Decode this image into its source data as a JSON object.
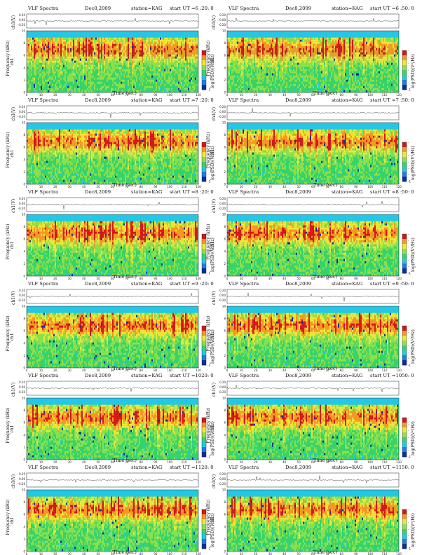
{
  "page": {
    "program_label": "VLF Spectra",
    "date": "Dec8,2009",
    "station": "station=KAG",
    "ut_prefix": "start UT =",
    "ch_axis_label": "ch1(V)",
    "freq_axis_label": "Frequency (kHz)",
    "channel_label": "ch1",
    "colorbar_label": "log(PSD)(V²/Hz)",
    "time_axis_label": "Time (sec)"
  },
  "chart_data": [
    {
      "type": "heatmap",
      "start_ut": "6 :20: 0"
    },
    {
      "type": "heatmap",
      "start_ut": "6 :50: 0"
    },
    {
      "type": "heatmap",
      "start_ut": "7 :20: 0"
    },
    {
      "type": "heatmap",
      "start_ut": "7 :50: 0"
    },
    {
      "type": "heatmap",
      "start_ut": "8 :20: 0"
    },
    {
      "type": "heatmap",
      "start_ut": "8 :50: 0"
    },
    {
      "type": "heatmap",
      "start_ut": "9 :20: 0"
    },
    {
      "type": "heatmap",
      "start_ut": "9 :50: 0"
    },
    {
      "type": "heatmap",
      "start_ut": "1020: 0"
    },
    {
      "type": "heatmap",
      "start_ut": "1050: 0"
    },
    {
      "type": "heatmap",
      "start_ut": "1120: 0"
    },
    {
      "type": "heatmap",
      "start_ut": "1150: 0"
    }
  ],
  "axes": {
    "x_ticks": [
      "0",
      "10",
      "20",
      "30",
      "40",
      "50",
      "60",
      "70",
      "80",
      "90",
      "100",
      "110",
      "120"
    ],
    "x_range": [
      0,
      120
    ],
    "y_ticks": [
      "0",
      "2",
      "4",
      "6",
      "8",
      "10"
    ],
    "y_range": [
      0,
      10
    ],
    "ch_ticks": [
      "0.20",
      "0.00",
      "-0.20"
    ],
    "cbar_ticks": [
      "-1",
      "-",
      "-",
      "-",
      "-",
      "-",
      "-"
    ]
  },
  "colors": {
    "background_band": "#24c8e6",
    "low": "#0a2f9c",
    "mid": "#36d36a",
    "high": "#f0e63a",
    "peak": "#d01818"
  }
}
